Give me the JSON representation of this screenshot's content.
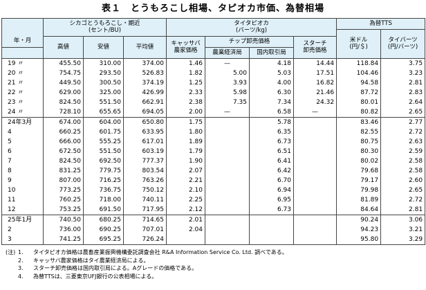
{
  "title": "表１　とうもろこし相場、タピオカ市価、為替相場",
  "headers": {
    "year_month": "年・月",
    "corn_group": "シカゴとうもろこし・期近\n(セント/BU)",
    "corn_high": "高値",
    "corn_low": "安値",
    "corn_avg": "平均値",
    "tapioca_group": "タイタピオカ\n(バーツ/kg)",
    "cassava": "キャッサバ\n農家価格",
    "chip_group": "チップ卸売価格",
    "chip_farm": "農業経済局",
    "chip_domestic": "国内取引局",
    "starch": "スターチ\n卸売価格",
    "tts_group": "為替TTS",
    "usd": "米ドル\n(円/＄)",
    "baht": "タイバーツ\n(円/バーツ)"
  },
  "rows": [
    [
      "19 〃",
      "455.50",
      "310.00",
      "374.00",
      "1.46",
      "—",
      "4.18",
      "14.44",
      "118.84",
      "3.75"
    ],
    [
      "20 〃",
      "754.75",
      "293.50",
      "526.83",
      "1.82",
      "5.00",
      "5.03",
      "17.51",
      "104.46",
      "3.23"
    ],
    [
      "21 〃",
      "449.50",
      "300.50",
      "374.19",
      "1.25",
      "3.93",
      "4.00",
      "16.82",
      "94.58",
      "2.81"
    ],
    [
      "22 〃",
      "629.00",
      "325.00",
      "426.99",
      "2.33",
      "5.98",
      "6.30",
      "21.46",
      "87.72",
      "2.83"
    ],
    [
      "23 〃",
      "824.50",
      "551.50",
      "662.91",
      "2.38",
      "7.35",
      "7.34",
      "24.32",
      "80.01",
      "2.64"
    ],
    [
      "24 〃",
      "728.10",
      "655.65",
      "694.05",
      "2.00",
      "—",
      "6.58",
      "—",
      "80.82",
      "2.65"
    ],
    [
      "24年3月",
      "674.00",
      "604.00",
      "650.80",
      "1.75",
      "",
      "5.78",
      "",
      "83.46",
      "2.77"
    ],
    [
      "4",
      "660.25",
      "601.75",
      "633.95",
      "1.80",
      "",
      "6.35",
      "",
      "82.55",
      "2.72"
    ],
    [
      "5",
      "666.00",
      "555.25",
      "617.01",
      "1.89",
      "",
      "6.73",
      "",
      "80.75",
      "2.63"
    ],
    [
      "6",
      "672.50",
      "551.50",
      "603.19",
      "1.79",
      "",
      "6.51",
      "",
      "80.30",
      "2.59"
    ],
    [
      "7",
      "824.50",
      "692.50",
      "777.37",
      "1.90",
      "",
      "6.41",
      "",
      "80.02",
      "2.58"
    ],
    [
      "8",
      "831.25",
      "779.75",
      "803.54",
      "2.07",
      "",
      "6.42",
      "",
      "79.68",
      "2.58"
    ],
    [
      "9",
      "807.00",
      "716.25",
      "763.26",
      "2.21",
      "",
      "6.70",
      "",
      "79.17",
      "2.60"
    ],
    [
      "10",
      "773.25",
      "736.75",
      "750.12",
      "2.10",
      "",
      "6.94",
      "",
      "79.98",
      "2.65"
    ],
    [
      "11",
      "760.25",
      "718.00",
      "740.11",
      "2.25",
      "",
      "6.95",
      "",
      "81.89",
      "2.72"
    ],
    [
      "12",
      "753.25",
      "691.50",
      "717.95",
      "2.12",
      "",
      "6.73",
      "",
      "84.64",
      "2.81"
    ],
    [
      "25年1月",
      "740.50",
      "680.25",
      "714.65",
      "2.01",
      "",
      "",
      "",
      "90.24",
      "3.06"
    ],
    [
      "2",
      "736.00",
      "690.25",
      "707.01",
      "2.04",
      "",
      "",
      "",
      "94.23",
      "3.21"
    ],
    [
      "3",
      "741.25",
      "695.25",
      "726.24",
      "",
      "",
      "",
      "",
      "95.80",
      "3.29"
    ]
  ],
  "notes": {
    "lead": "(注)",
    "items": [
      {
        "num": "1.",
        "text": "タイタピオカ価格は農畜産業振興機構委託調査会社 R&A Information Service Co. Ltd. 調べである。"
      },
      {
        "num": "2.",
        "text": "キャッサバ農家価格はタイ農業経済局による。"
      },
      {
        "num": "3.",
        "text": "スターチ卸売価格は国内取引局による。Aグレードの価格である。"
      },
      {
        "num": "4.",
        "text": "為替TTSは、三菱東京UFJ銀行の公表相場による。"
      }
    ]
  }
}
